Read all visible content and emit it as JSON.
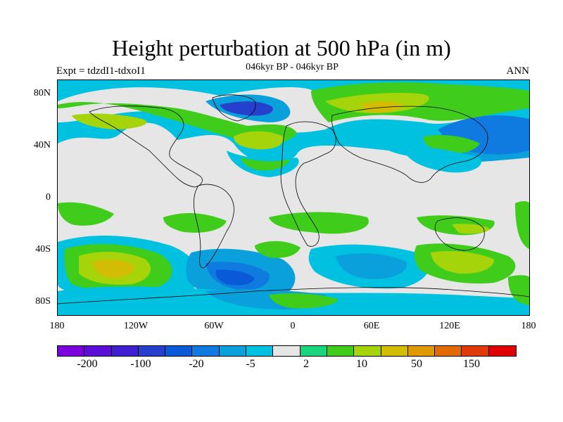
{
  "title": "Height perturbation at 500 hPa (in m)",
  "left_subtitle": "Expt = tdzdI1-tdxoI1",
  "center_subtitle": "046kyr BP - 046kyr BP",
  "right_subtitle": "ANN",
  "lat_ticks": [
    "80N",
    "40N",
    "0",
    "40S",
    "80S"
  ],
  "lon_ticks": [
    "180",
    "120W",
    "60W",
    "0",
    "60E",
    "120E",
    "180"
  ],
  "colorbar": {
    "colors": [
      "#7a00dc",
      "#5b0fd6",
      "#3f1fd0",
      "#2540cc",
      "#0a5ad8",
      "#0f7be0",
      "#0aa0dc",
      "#00c2e0",
      "#e6e6e6",
      "#19d57e",
      "#3fcc1a",
      "#a6d40a",
      "#d2bd04",
      "#e09a00",
      "#e06a00",
      "#e03a0a",
      "#e00000"
    ],
    "labels": [
      "-200",
      "-100",
      "-20",
      "-5",
      "2",
      "10",
      "50",
      "150"
    ]
  }
}
